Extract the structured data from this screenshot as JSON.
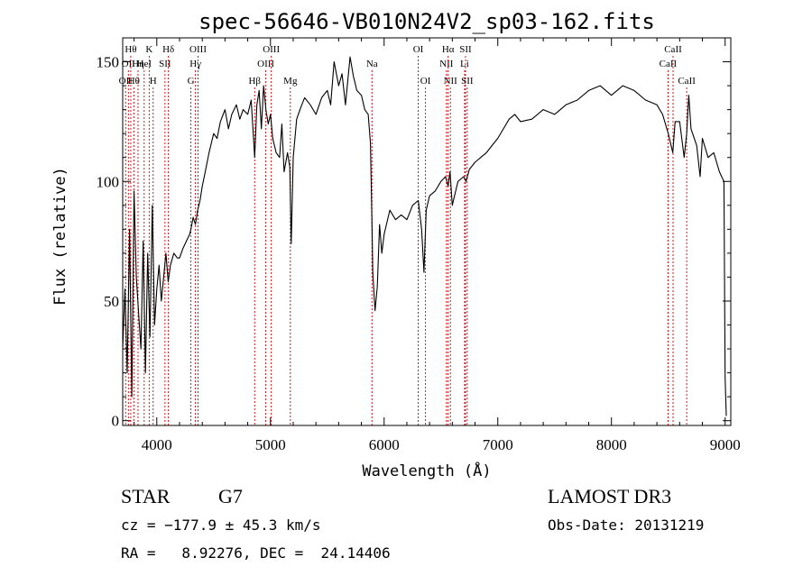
{
  "chart_data": {
    "type": "line",
    "title": "spec-56646-VB010N24V2_sp03-162.fits",
    "xlabel": "Wavelength (Å)",
    "ylabel": "Flux (relative)",
    "xlim": [
      3700,
      9050
    ],
    "ylim": [
      -2,
      160
    ],
    "xticks": [
      4000,
      5000,
      6000,
      7000,
      8000,
      9000
    ],
    "yticks": [
      0,
      50,
      100,
      150
    ],
    "grid": false,
    "series": [
      {
        "x": [
          3700,
          3720,
          3740,
          3760,
          3780,
          3800,
          3820,
          3840,
          3860,
          3880,
          3900,
          3920,
          3940,
          3960,
          3980,
          4000,
          4020,
          4040,
          4060,
          4080,
          4100,
          4120,
          4150,
          4180,
          4200,
          4230,
          4260,
          4290,
          4300,
          4320,
          4340,
          4360,
          4380,
          4400,
          4430,
          4460,
          4500,
          4530,
          4560,
          4600,
          4630,
          4660,
          4700,
          4730,
          4760,
          4800,
          4830,
          4861,
          4880,
          4900,
          4920,
          4940,
          4960,
          4980,
          5000,
          5020,
          5050,
          5080,
          5100,
          5120,
          5150,
          5170,
          5183,
          5200,
          5230,
          5260,
          5300,
          5350,
          5400,
          5450,
          5500,
          5530,
          5560,
          5600,
          5630,
          5660,
          5700,
          5730,
          5760,
          5800,
          5830,
          5860,
          5880,
          5893,
          5900,
          5920,
          5940,
          5960,
          5980,
          6000,
          6050,
          6100,
          6150,
          6200,
          6250,
          6300,
          6330,
          6350,
          6370,
          6400,
          6450,
          6500,
          6540,
          6563,
          6580,
          6600,
          6650,
          6700,
          6720,
          6750,
          6800,
          6850,
          6900,
          6950,
          7000,
          7050,
          7100,
          7150,
          7200,
          7300,
          7400,
          7500,
          7600,
          7700,
          7800,
          7900,
          8000,
          8100,
          8200,
          8300,
          8400,
          8450,
          8500,
          8540,
          8560,
          8600,
          8640,
          8662,
          8680,
          8700,
          8750,
          8780,
          8800,
          8850,
          8900,
          8950,
          8990,
          9000,
          9010
        ],
        "y": [
          30,
          55,
          20,
          80,
          10,
          96,
          60,
          45,
          30,
          75,
          20,
          70,
          35,
          90,
          40,
          55,
          65,
          50,
          60,
          70,
          58,
          65,
          70,
          68,
          68,
          72,
          75,
          78,
          80,
          85,
          82,
          88,
          92,
          98,
          105,
          112,
          120,
          118,
          125,
          130,
          122,
          128,
          132,
          126,
          130,
          128,
          134,
          110,
          132,
          138,
          122,
          140,
          130,
          124,
          128,
          118,
          112,
          110,
          124,
          104,
          112,
          106,
          74,
          110,
          126,
          130,
          135,
          132,
          128,
          135,
          138,
          132,
          150,
          140,
          145,
          132,
          152,
          144,
          138,
          136,
          130,
          128,
          116,
          82,
          62,
          46,
          56,
          82,
          70,
          78,
          88,
          84,
          86,
          84,
          90,
          92,
          80,
          62,
          88,
          94,
          96,
          100,
          102,
          98,
          104,
          90,
          100,
          102,
          100,
          105,
          108,
          110,
          112,
          115,
          118,
          122,
          126,
          128,
          125,
          126,
          130,
          128,
          132,
          134,
          138,
          140,
          136,
          140,
          138,
          134,
          132,
          128,
          120,
          112,
          125,
          125,
          110,
          120,
          136,
          122,
          115,
          102,
          118,
          110,
          112,
          104,
          100,
          18,
          2
        ]
      }
    ],
    "lines": [
      {
        "wl": 3726,
        "label": "OII",
        "row": 2
      },
      {
        "wl": 3750,
        "label": "OII",
        "row": 1
      },
      {
        "wl": 3771,
        "label": "Hθ",
        "row": 0
      },
      {
        "wl": 3798,
        "label": "Hθ",
        "row": 2
      },
      {
        "wl": 3835,
        "label": "Hη",
        "row": 1
      },
      {
        "wl": 3889,
        "label": "HeI",
        "row": 1
      },
      {
        "wl": 3933,
        "label": "K",
        "row": 0
      },
      {
        "wl": 3968,
        "label": "H",
        "row": 2
      },
      {
        "wl": 4072,
        "label": "SII",
        "row": 1
      },
      {
        "wl": 4102,
        "label": "Hδ",
        "row": 0
      },
      {
        "wl": 4300,
        "label": "G",
        "row": 2
      },
      {
        "wl": 4340,
        "label": "Hγ",
        "row": 1
      },
      {
        "wl": 4363,
        "label": "OIII",
        "row": 0
      },
      {
        "wl": 4861,
        "label": "Hβ",
        "row": 2
      },
      {
        "wl": 4959,
        "label": "OIII",
        "row": 1
      },
      {
        "wl": 5007,
        "label": "OIII",
        "row": 0
      },
      {
        "wl": 5175,
        "label": "Mg",
        "row": 2
      },
      {
        "wl": 5893,
        "label": "Na",
        "row": 1
      },
      {
        "wl": 6300,
        "label": "OI",
        "row": 0
      },
      {
        "wl": 6364,
        "label": "OI",
        "row": 2
      },
      {
        "wl": 6548,
        "label": "NII",
        "row": 1
      },
      {
        "wl": 6563,
        "label": "Hα",
        "row": 0
      },
      {
        "wl": 6583,
        "label": "NII",
        "row": 2
      },
      {
        "wl": 6708,
        "label": "Li",
        "row": 1
      },
      {
        "wl": 6716,
        "label": "SII",
        "row": 0
      },
      {
        "wl": 6731,
        "label": "SII",
        "row": 2
      },
      {
        "wl": 8498,
        "label": "CaII",
        "row": 1
      },
      {
        "wl": 8542,
        "label": "CaII",
        "row": 0
      },
      {
        "wl": 8662,
        "label": "CaII",
        "row": 2
      }
    ]
  },
  "info": {
    "class_label": "STAR",
    "subclass": "G7",
    "cz": "cz = −177.9 ± 45.3 km/s",
    "radec": "RA =   8.92276, DEC =  24.14406",
    "survey": "LAMOST DR3",
    "obsdate": "Obs-Date: 20131219"
  },
  "colors": {
    "line_marker": "#cc0000",
    "spectrum": "#000000"
  }
}
